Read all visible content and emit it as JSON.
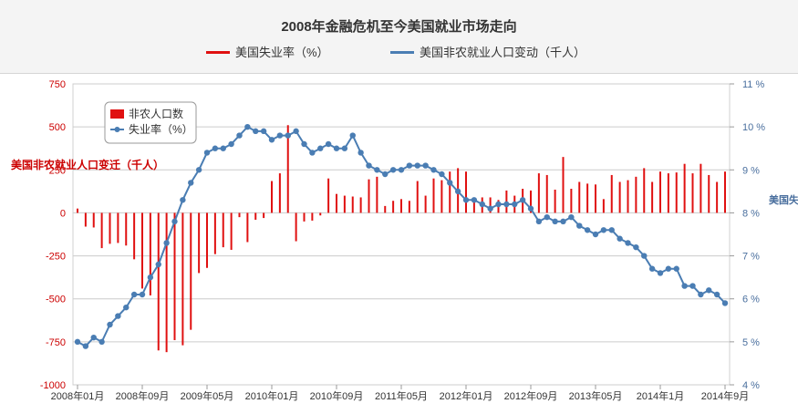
{
  "title": "2008年金融危机至今美国就业市场走向",
  "legend_top": {
    "unemployment": "美国失业率（%）",
    "payroll": "美国非农就业人口变动（千人）"
  },
  "colors": {
    "bars": "#e01010",
    "line": "#4a7db3",
    "left_axis_text": "#cc0000",
    "right_axis_text": "#4a6f9e",
    "grid": "#cccccc"
  },
  "chart_data": {
    "type": "bar",
    "title": "2008年金融危机至今美国就业市场走向",
    "left_axis": {
      "label": "美国非农就业人口变迁（千人）",
      "ylim": [
        -1000,
        750
      ],
      "ticks": [
        "750",
        "500",
        "250",
        "0",
        "-250",
        "-500",
        "-750",
        "-1000"
      ]
    },
    "right_axis": {
      "label": "美国失业率",
      "ylim": [
        4,
        11
      ],
      "ticks": [
        "11 %",
        "10 %",
        "9 %",
        "8 %",
        "7 %",
        "6 %",
        "5 %",
        "4 %"
      ]
    },
    "x_tick_labels": [
      "2008年01月",
      "2008年09月",
      "2009年05月",
      "2010年01月",
      "2010年09月",
      "2011年05月",
      "2012年01月",
      "2012年09月",
      "2013年05月",
      "2014年1月",
      "2014年9月"
    ],
    "x_tick_indices": [
      0,
      8,
      16,
      24,
      32,
      40,
      48,
      56,
      64,
      72,
      80
    ],
    "inner_legend": {
      "bars": "非农人口数",
      "line": "失业率（%）"
    },
    "series": [
      {
        "name": "非农人口数",
        "type": "bar",
        "axis": "left",
        "values": [
          25,
          -80,
          -85,
          -205,
          -180,
          -175,
          -190,
          -270,
          -440,
          -480,
          -800,
          -810,
          -740,
          -770,
          -680,
          -350,
          -320,
          -240,
          -200,
          -215,
          -25,
          -170,
          -40,
          -30,
          185,
          230,
          510,
          -165,
          -50,
          -45,
          -15,
          200,
          110,
          100,
          95,
          90,
          195,
          210,
          40,
          70,
          80,
          70,
          185,
          100,
          200,
          190,
          240,
          260,
          240,
          80,
          90,
          90,
          75,
          130,
          100,
          140,
          130,
          230,
          220,
          135,
          325,
          140,
          180,
          170,
          165,
          80,
          220,
          180,
          190,
          210,
          260,
          180,
          240,
          230,
          235,
          285,
          230,
          285,
          220,
          180,
          240
        ]
      },
      {
        "name": "失业率（%）",
        "type": "line",
        "axis": "right",
        "values": [
          5.0,
          4.9,
          5.1,
          5.0,
          5.4,
          5.6,
          5.8,
          6.1,
          6.1,
          6.5,
          6.8,
          7.3,
          7.8,
          8.3,
          8.7,
          9.0,
          9.4,
          9.5,
          9.5,
          9.6,
          9.8,
          10.0,
          9.9,
          9.9,
          9.7,
          9.8,
          9.8,
          9.9,
          9.6,
          9.4,
          9.5,
          9.6,
          9.5,
          9.5,
          9.8,
          9.4,
          9.1,
          9.0,
          8.9,
          9.0,
          9.0,
          9.1,
          9.1,
          9.1,
          9.0,
          8.9,
          8.7,
          8.5,
          8.3,
          8.3,
          8.2,
          8.1,
          8.2,
          8.2,
          8.2,
          8.3,
          8.1,
          7.8,
          7.9,
          7.8,
          7.8,
          7.9,
          7.7,
          7.6,
          7.5,
          7.6,
          7.6,
          7.4,
          7.3,
          7.2,
          7.0,
          6.7,
          6.6,
          6.7,
          6.7,
          6.3,
          6.3,
          6.1,
          6.2,
          6.1,
          5.9
        ]
      }
    ]
  }
}
